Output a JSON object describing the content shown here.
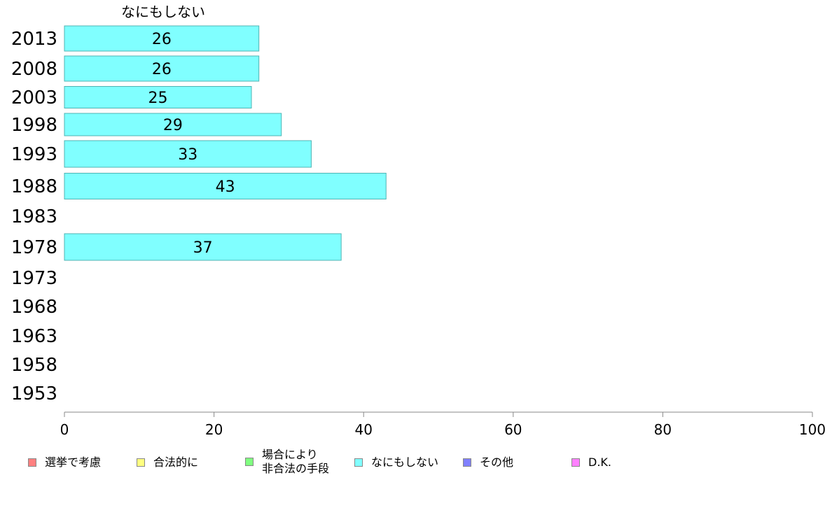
{
  "chart_data": {
    "type": "bar",
    "title": "なにもしない",
    "categories": [
      "2013",
      "2008",
      "2003",
      "1998",
      "1993",
      "1988",
      "1983",
      "1978",
      "1973",
      "1968",
      "1963",
      "1958",
      "1953"
    ],
    "series": [
      {
        "name": "なにもしない",
        "values": [
          26,
          26,
          25,
          29,
          33,
          43,
          null,
          37,
          null,
          null,
          null,
          null,
          null
        ]
      }
    ],
    "xlim": [
      0,
      100
    ],
    "xticks": [
      "0",
      "20",
      "40",
      "60",
      "80",
      "100"
    ],
    "bar_color": "#80ffff",
    "grid": false,
    "legend_placement": "bottom"
  },
  "legend": [
    {
      "label": "選挙で考慮",
      "color": "#ff8080"
    },
    {
      "label": "合法的に",
      "color": "#ffff80"
    },
    {
      "label": "場合により\n非合法の手段",
      "color": "#80ff80"
    },
    {
      "label": "なにもしない",
      "color": "#80ffff"
    },
    {
      "label": "その他",
      "color": "#8080ff"
    },
    {
      "label": "D.K.",
      "color": "#ff80ff"
    }
  ]
}
